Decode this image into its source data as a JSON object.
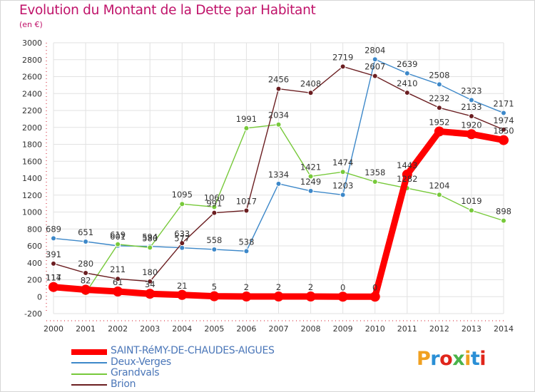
{
  "title": "Evolution du Montant de la Dette par Habitant",
  "subtitle": "(en €)",
  "logo": {
    "text": "Proxiti",
    "colors": [
      "#f0a020",
      "#2a8fd6",
      "#e0251b",
      "#4ab34a",
      "#f0a020",
      "#2a8fd6",
      "#e0251b"
    ]
  },
  "chart_data": {
    "type": "line",
    "title": "Evolution du Montant de la Dette par Habitant",
    "subtitle": "(en €)",
    "x": [
      2000,
      2001,
      2002,
      2003,
      2004,
      2005,
      2006,
      2007,
      2008,
      2009,
      2010,
      2011,
      2012,
      2013,
      2014
    ],
    "ylim": [
      -200,
      3000
    ],
    "yticks": [
      -200,
      0,
      200,
      400,
      600,
      800,
      1000,
      1200,
      1400,
      1600,
      1800,
      2000,
      2200,
      2400,
      2600,
      2800,
      3000
    ],
    "grid": true,
    "legend_position": "bottom-left",
    "series": [
      {
        "name": "SAINT-RéMY-DE-CHAUDES-AIGUES",
        "color": "#ff0000",
        "values": [
          114,
          82,
          61,
          34,
          21,
          5,
          2,
          2,
          2,
          0,
          0,
          1443,
          1952,
          1920,
          1850
        ]
      },
      {
        "name": "Deux-Verges",
        "color": "#3d88c9",
        "values": [
          689,
          651,
          601,
          594,
          577,
          558,
          538,
          1334,
          1249,
          1203,
          2804,
          2639,
          2508,
          2323,
          2171
        ]
      },
      {
        "name": "Grandvals",
        "color": "#77c93a",
        "values": [
          117,
          44,
          619,
          580,
          1095,
          1060,
          1991,
          2034,
          1421,
          1474,
          1358,
          1282,
          1204,
          1019,
          898
        ]
      },
      {
        "name": "Brion",
        "color": "#6b1e21",
        "values": [
          391,
          280,
          211,
          180,
          633,
          991,
          1017,
          2456,
          2408,
          2719,
          2607,
          2410,
          2232,
          2133,
          1974
        ]
      }
    ],
    "data_labels": [
      [
        "114",
        "82",
        "61",
        "34",
        "21",
        "5",
        "2",
        "2",
        "2",
        "0",
        "0",
        "1443",
        "1952",
        "1920",
        "1850"
      ],
      [
        "689",
        "651",
        "601",
        "594",
        "577",
        "558",
        "538",
        "1334",
        "1249",
        "1203",
        "2804",
        "2639",
        "2508",
        "2323",
        "2171"
      ],
      [
        "117",
        "",
        "619",
        "580",
        "1095",
        "1060",
        "1991",
        "2034",
        "1421",
        "1474",
        "1358",
        "1282",
        "1204",
        "1019",
        "898"
      ],
      [
        "391",
        "280",
        "211",
        "180",
        "633",
        "991",
        "1017",
        "2456",
        "2408",
        "2719",
        "2607",
        "2410",
        "2232",
        "2133",
        "1974"
      ]
    ]
  }
}
